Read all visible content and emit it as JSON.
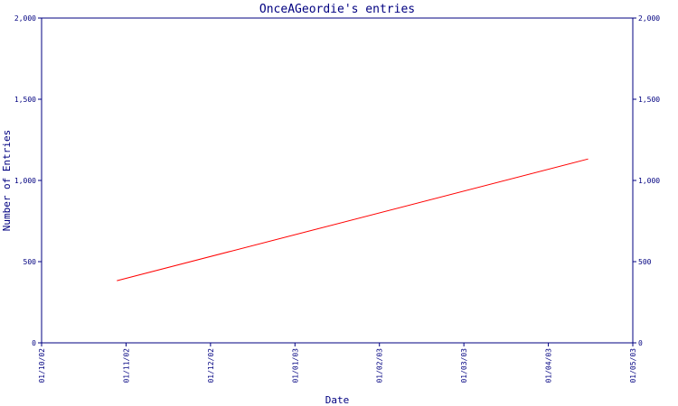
{
  "chart_data": {
    "type": "line",
    "title": "OnceAGeordie's entries",
    "xlabel": "Date",
    "ylabel": "Number of Entries",
    "x_ticks": [
      "01/10/02",
      "01/11/02",
      "01/12/02",
      "01/01/03",
      "01/02/03",
      "01/03/03",
      "01/04/03",
      "01/05/03"
    ],
    "y_ticks": [
      "0",
      "500",
      "1,000",
      "1,500",
      "2,000"
    ],
    "ylim": [
      0,
      2000
    ],
    "xlim": [
      "2002-10-01",
      "2003-05-01"
    ],
    "series": [
      {
        "points": [
          {
            "x": "2002-10-28",
            "y": 383
          },
          {
            "x": "2003-04-15",
            "y": 1132
          }
        ]
      }
    ],
    "colors": {
      "line": "#ff0000",
      "axes": "#000080"
    },
    "grid": false,
    "legend": "none"
  }
}
